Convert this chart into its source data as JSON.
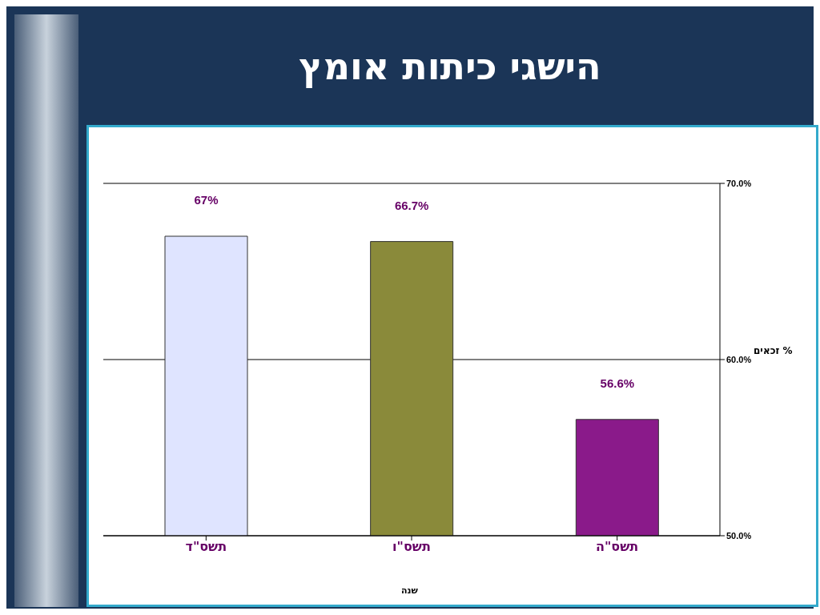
{
  "chart_data": {
    "type": "bar",
    "title": "הישגי כיתות אומץ",
    "xlabel": "שנה",
    "ylabel": "% זכאים",
    "categories": [
      "תשס\"ד",
      "תשס\"ו",
      "תשס\"ה"
    ],
    "values": [
      67,
      66.7,
      56.6
    ],
    "colors": [
      "#dfe4ff",
      "#8a8a3a",
      "#8a1a8a"
    ],
    "value_labels": [
      "67%",
      "66.7%",
      "56.6%"
    ],
    "ylim": [
      50,
      70
    ],
    "yticks": [
      {
        "value": 50,
        "label": "50.0%"
      },
      {
        "value": 60,
        "label": "60.0%"
      },
      {
        "value": 70,
        "label": "70.0%"
      }
    ],
    "grid": "y"
  }
}
